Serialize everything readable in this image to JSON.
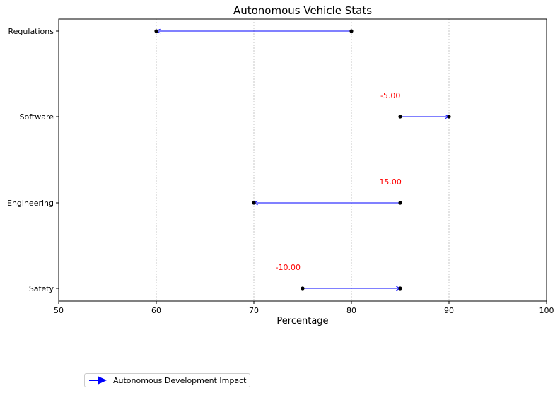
{
  "chart_data": {
    "type": "dumbbell-arrow",
    "title": "Autonomous Vehicle Stats",
    "xlabel": "Percentage",
    "ylabel": "",
    "xlim": [
      50,
      100
    ],
    "xticks": [
      50,
      60,
      70,
      80,
      90,
      100
    ],
    "grid": "x-dotted",
    "categories": [
      "Regulations",
      "Software",
      "Engineering",
      "Safety"
    ],
    "start": [
      80,
      85,
      85,
      75
    ],
    "end": [
      60,
      90,
      70,
      85
    ],
    "annotations": [
      {
        "category": "Software",
        "text": "-5.00",
        "x": 84.0
      },
      {
        "category": "Engineering",
        "text": "15.00",
        "x": 84.0
      },
      {
        "category": "Safety",
        "text": "-10.00",
        "x": 73.5
      }
    ],
    "series": [
      {
        "name": "Autonomous Development Impact",
        "color": "#0000ff"
      }
    ],
    "legend_position": "below-left",
    "colors": {
      "arrow": "#0000ff",
      "point": "#000000",
      "annotation": "#ff0000",
      "grid": "#b0b0b0"
    }
  }
}
